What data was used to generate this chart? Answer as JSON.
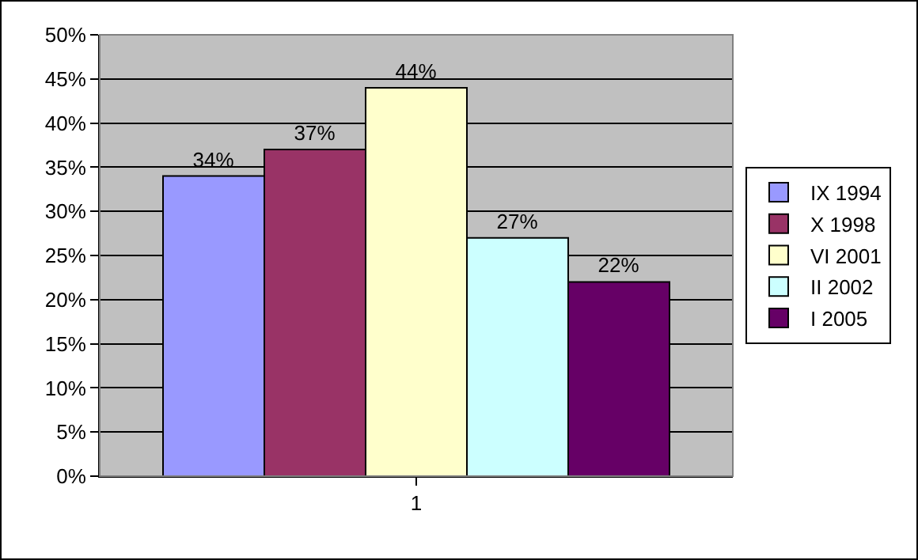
{
  "chart_data": {
    "type": "bar",
    "categories": [
      "1"
    ],
    "series": [
      {
        "name": "IX 1994",
        "color": "#9999ff",
        "values": [
          34
        ],
        "value_labels": [
          "34%"
        ]
      },
      {
        "name": "X 1998",
        "color": "#993366",
        "values": [
          37
        ],
        "value_labels": [
          "37%"
        ]
      },
      {
        "name": "VI 2001",
        "color": "#ffffcc",
        "values": [
          44
        ],
        "value_labels": [
          "44%"
        ]
      },
      {
        "name": "II 2002",
        "color": "#ccffff",
        "values": [
          27
        ],
        "value_labels": [
          "27%"
        ]
      },
      {
        "name": "I 2005",
        "color": "#660066",
        "values": [
          22
        ],
        "value_labels": [
          "22%"
        ]
      }
    ],
    "ylim": [
      0,
      50
    ],
    "yticks": [
      {
        "value": 0,
        "label": "0%"
      },
      {
        "value": 5,
        "label": "5%"
      },
      {
        "value": 10,
        "label": "10%"
      },
      {
        "value": 15,
        "label": "15%"
      },
      {
        "value": 20,
        "label": "20%"
      },
      {
        "value": 25,
        "label": "25%"
      },
      {
        "value": 30,
        "label": "30%"
      },
      {
        "value": 35,
        "label": "35%"
      },
      {
        "value": 40,
        "label": "40%"
      },
      {
        "value": 45,
        "label": "45%"
      },
      {
        "value": 50,
        "label": "50%"
      }
    ],
    "grid": "y",
    "legend": "right"
  }
}
